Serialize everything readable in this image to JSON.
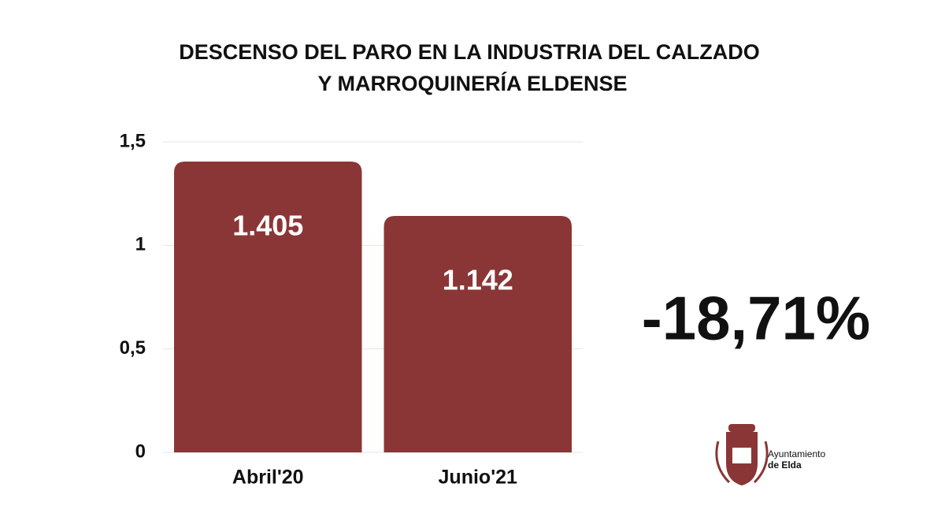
{
  "chart_data": {
    "type": "bar",
    "title": [
      "DESCENSO DEL PARO EN LA INDUSTRIA  DEL CALZADO",
      "Y MARROQUINERÍA ELDENSE"
    ],
    "categories": [
      "Abril'20",
      "Junio'21"
    ],
    "values": [
      1.405,
      1.142
    ],
    "color": "#8b3636",
    "ylim": [
      0,
      1.5
    ],
    "yticks": [
      0,
      {
        "value": 0.5,
        "label": "0,5"
      },
      1,
      {
        "value": 1.5,
        "label": "1,5"
      }
    ],
    "grid": true,
    "annotation": "-18,71%",
    "logo": [
      "Ayuntamiento",
      "de Elda"
    ]
  }
}
